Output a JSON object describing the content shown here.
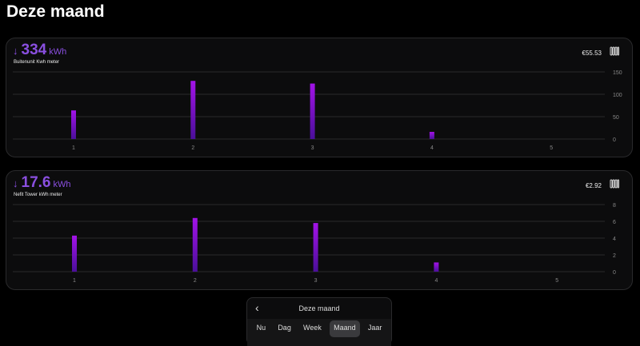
{
  "page": {
    "title": "Deze maand"
  },
  "colors": {
    "accent": "#8a4fe0",
    "bar_top": "#a313e8",
    "bar_bottom": "#4a0f9a",
    "grid": "#2a2a2c",
    "tick": "#888888"
  },
  "cards": [
    {
      "total": "334",
      "unit": "kWh",
      "trend_icon": "arrow-down-icon",
      "subtitle": "Buitenunit Kwh meter",
      "cost": "€55.53",
      "icon": "radiator-icon",
      "chart_data": {
        "type": "bar",
        "categories": [
          "1",
          "2",
          "3",
          "4",
          "5"
        ],
        "values": [
          64,
          130,
          124,
          16,
          0
        ],
        "ylim": [
          0,
          150
        ],
        "yticks": [
          "0",
          "50",
          "100",
          "150"
        ],
        "grid": true
      }
    },
    {
      "total": "17.6",
      "unit": "kWh",
      "trend_icon": "arrow-down-icon",
      "subtitle": "Nefit Tower kWh meter",
      "cost": "€2.92",
      "icon": "radiator-icon",
      "chart_data": {
        "type": "bar",
        "categories": [
          "1",
          "2",
          "3",
          "4",
          "5"
        ],
        "values": [
          4.3,
          6.4,
          5.8,
          1.1,
          0
        ],
        "ylim": [
          0,
          8
        ],
        "yticks": [
          "0",
          "2",
          "4",
          "6",
          "8"
        ],
        "grid": true
      }
    }
  ],
  "period": {
    "title": "Deze maand",
    "tabs": [
      "Nu",
      "Dag",
      "Week",
      "Maand",
      "Jaar"
    ],
    "active": "Maand"
  }
}
